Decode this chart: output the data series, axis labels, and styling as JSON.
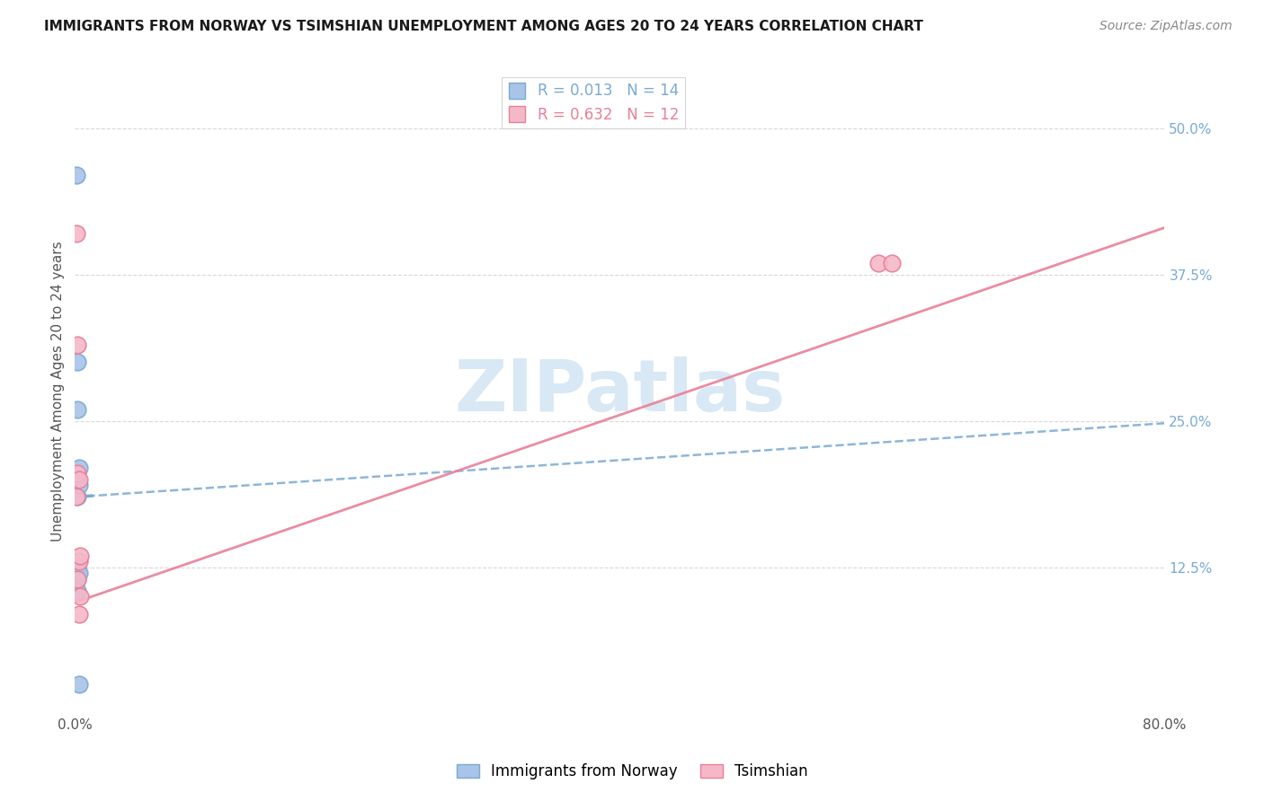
{
  "title": "IMMIGRANTS FROM NORWAY VS TSIMSHIAN UNEMPLOYMENT AMONG AGES 20 TO 24 YEARS CORRELATION CHART",
  "source": "Source: ZipAtlas.com",
  "ylabel": "Unemployment Among Ages 20 to 24 years",
  "xlim": [
    0.0,
    0.8
  ],
  "ylim": [
    0.0,
    0.55
  ],
  "xticks": [
    0.0,
    0.1,
    0.2,
    0.3,
    0.4,
    0.5,
    0.6,
    0.7,
    0.8
  ],
  "xticklabels": [
    "0.0%",
    "",
    "",
    "",
    "",
    "",
    "",
    "",
    "80.0%"
  ],
  "ytick_positions": [
    0.125,
    0.25,
    0.375,
    0.5
  ],
  "ytick_labels": [
    "12.5%",
    "25.0%",
    "37.5%",
    "50.0%"
  ],
  "norway_x": [
    0.001,
    0.001,
    0.001,
    0.002,
    0.002,
    0.002,
    0.002,
    0.002,
    0.002,
    0.002,
    0.003,
    0.003,
    0.003,
    0.003
  ],
  "norway_y": [
    0.46,
    0.115,
    0.105,
    0.3,
    0.26,
    0.2,
    0.185,
    0.125,
    0.115,
    0.105,
    0.21,
    0.195,
    0.12,
    0.025
  ],
  "tsimshian_x": [
    0.001,
    0.001,
    0.002,
    0.002,
    0.002,
    0.003,
    0.003,
    0.003,
    0.004,
    0.004,
    0.59,
    0.6
  ],
  "tsimshian_y": [
    0.41,
    0.185,
    0.315,
    0.205,
    0.115,
    0.2,
    0.13,
    0.085,
    0.135,
    0.1,
    0.385,
    0.385
  ],
  "norway_R": 0.013,
  "norway_N": 14,
  "tsimshian_R": 0.632,
  "tsimshian_N": 12,
  "norway_line_x": [
    0.0,
    0.8
  ],
  "norway_line_y": [
    0.185,
    0.248
  ],
  "tsimshian_line_x": [
    0.0,
    0.8
  ],
  "tsimshian_line_y": [
    0.095,
    0.415
  ],
  "norway_scatter_color": "#a8c4e8",
  "norway_scatter_edge": "#7aaad4",
  "tsimshian_scatter_color": "#f4b8c8",
  "tsimshian_scatter_edge": "#e88098",
  "norway_line_color": "#7aaad4",
  "tsimshian_line_color": "#e88098",
  "watermark_text": "ZIPatlas",
  "watermark_color": "#d8e8f4",
  "background_color": "#ffffff",
  "grid_color": "#d8d8d8",
  "title_fontsize": 11,
  "source_fontsize": 10,
  "tick_fontsize": 11,
  "legend_fontsize": 12,
  "ylabel_fontsize": 11
}
